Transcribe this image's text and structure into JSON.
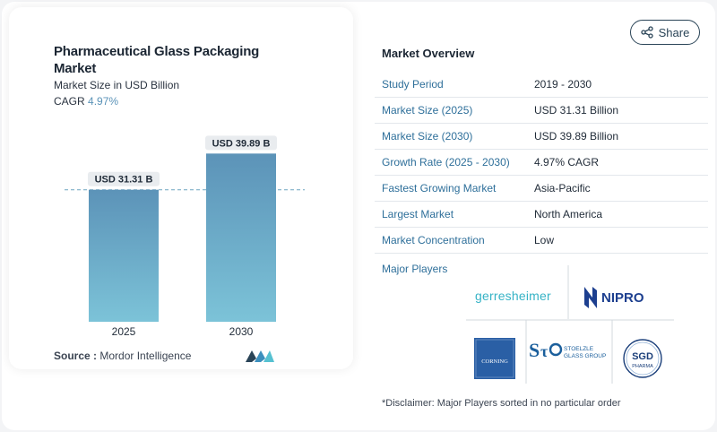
{
  "header": {
    "title": "Pharmaceutical Glass Packaging Market",
    "subtitle": "Market Size in USD Billion",
    "cagr_label": "CAGR",
    "cagr_value": "4.97%"
  },
  "chart_data": {
    "type": "bar",
    "categories": [
      "2025",
      "2030"
    ],
    "values": [
      31.31,
      39.89
    ],
    "data_labels": [
      "USD 31.31 B",
      "USD 39.89 B"
    ],
    "colors": {
      "bar_top": "#5c93b8",
      "bar_bottom": "#7cc3d8",
      "dashed_line": "#6fa6c0",
      "label_bg": "#e9ecef"
    },
    "ylim": [
      0,
      44
    ],
    "grid": false,
    "reference_line_at": 31.31
  },
  "source": {
    "label": "Source :",
    "value": "Mordor Intelligence"
  },
  "share_button": {
    "label": "Share"
  },
  "overview": {
    "title": "Market Overview",
    "rows": [
      {
        "key": "Study Period",
        "value": "2019 - 2030"
      },
      {
        "key": "Market Size (2025)",
        "value": "USD 31.31 Billion"
      },
      {
        "key": "Market Size (2030)",
        "value": "USD 39.89 Billion"
      },
      {
        "key": "Growth Rate (2025 - 2030)",
        "value": "4.97% CAGR"
      },
      {
        "key": "Fastest Growing Market",
        "value": "Asia-Pacific"
      },
      {
        "key": "Largest Market",
        "value": "North America"
      },
      {
        "key": "Market Concentration",
        "value": "Low"
      }
    ]
  },
  "players": {
    "title": "Major Players",
    "logos": [
      {
        "name": "gerresheimer",
        "text": "gerresheimer"
      },
      {
        "name": "nipro",
        "text": "NIPRO"
      },
      {
        "name": "corning",
        "text": "CORNING"
      },
      {
        "name": "stoelzle",
        "text_line1": "STOELZLE",
        "text_line2": "GLASS GROUP"
      },
      {
        "name": "sgd-pharma",
        "text_line1": "SGD",
        "text_line2": "PHARMA"
      }
    ]
  },
  "disclaimer": "*Disclaimer: Major Players sorted in no particular order"
}
